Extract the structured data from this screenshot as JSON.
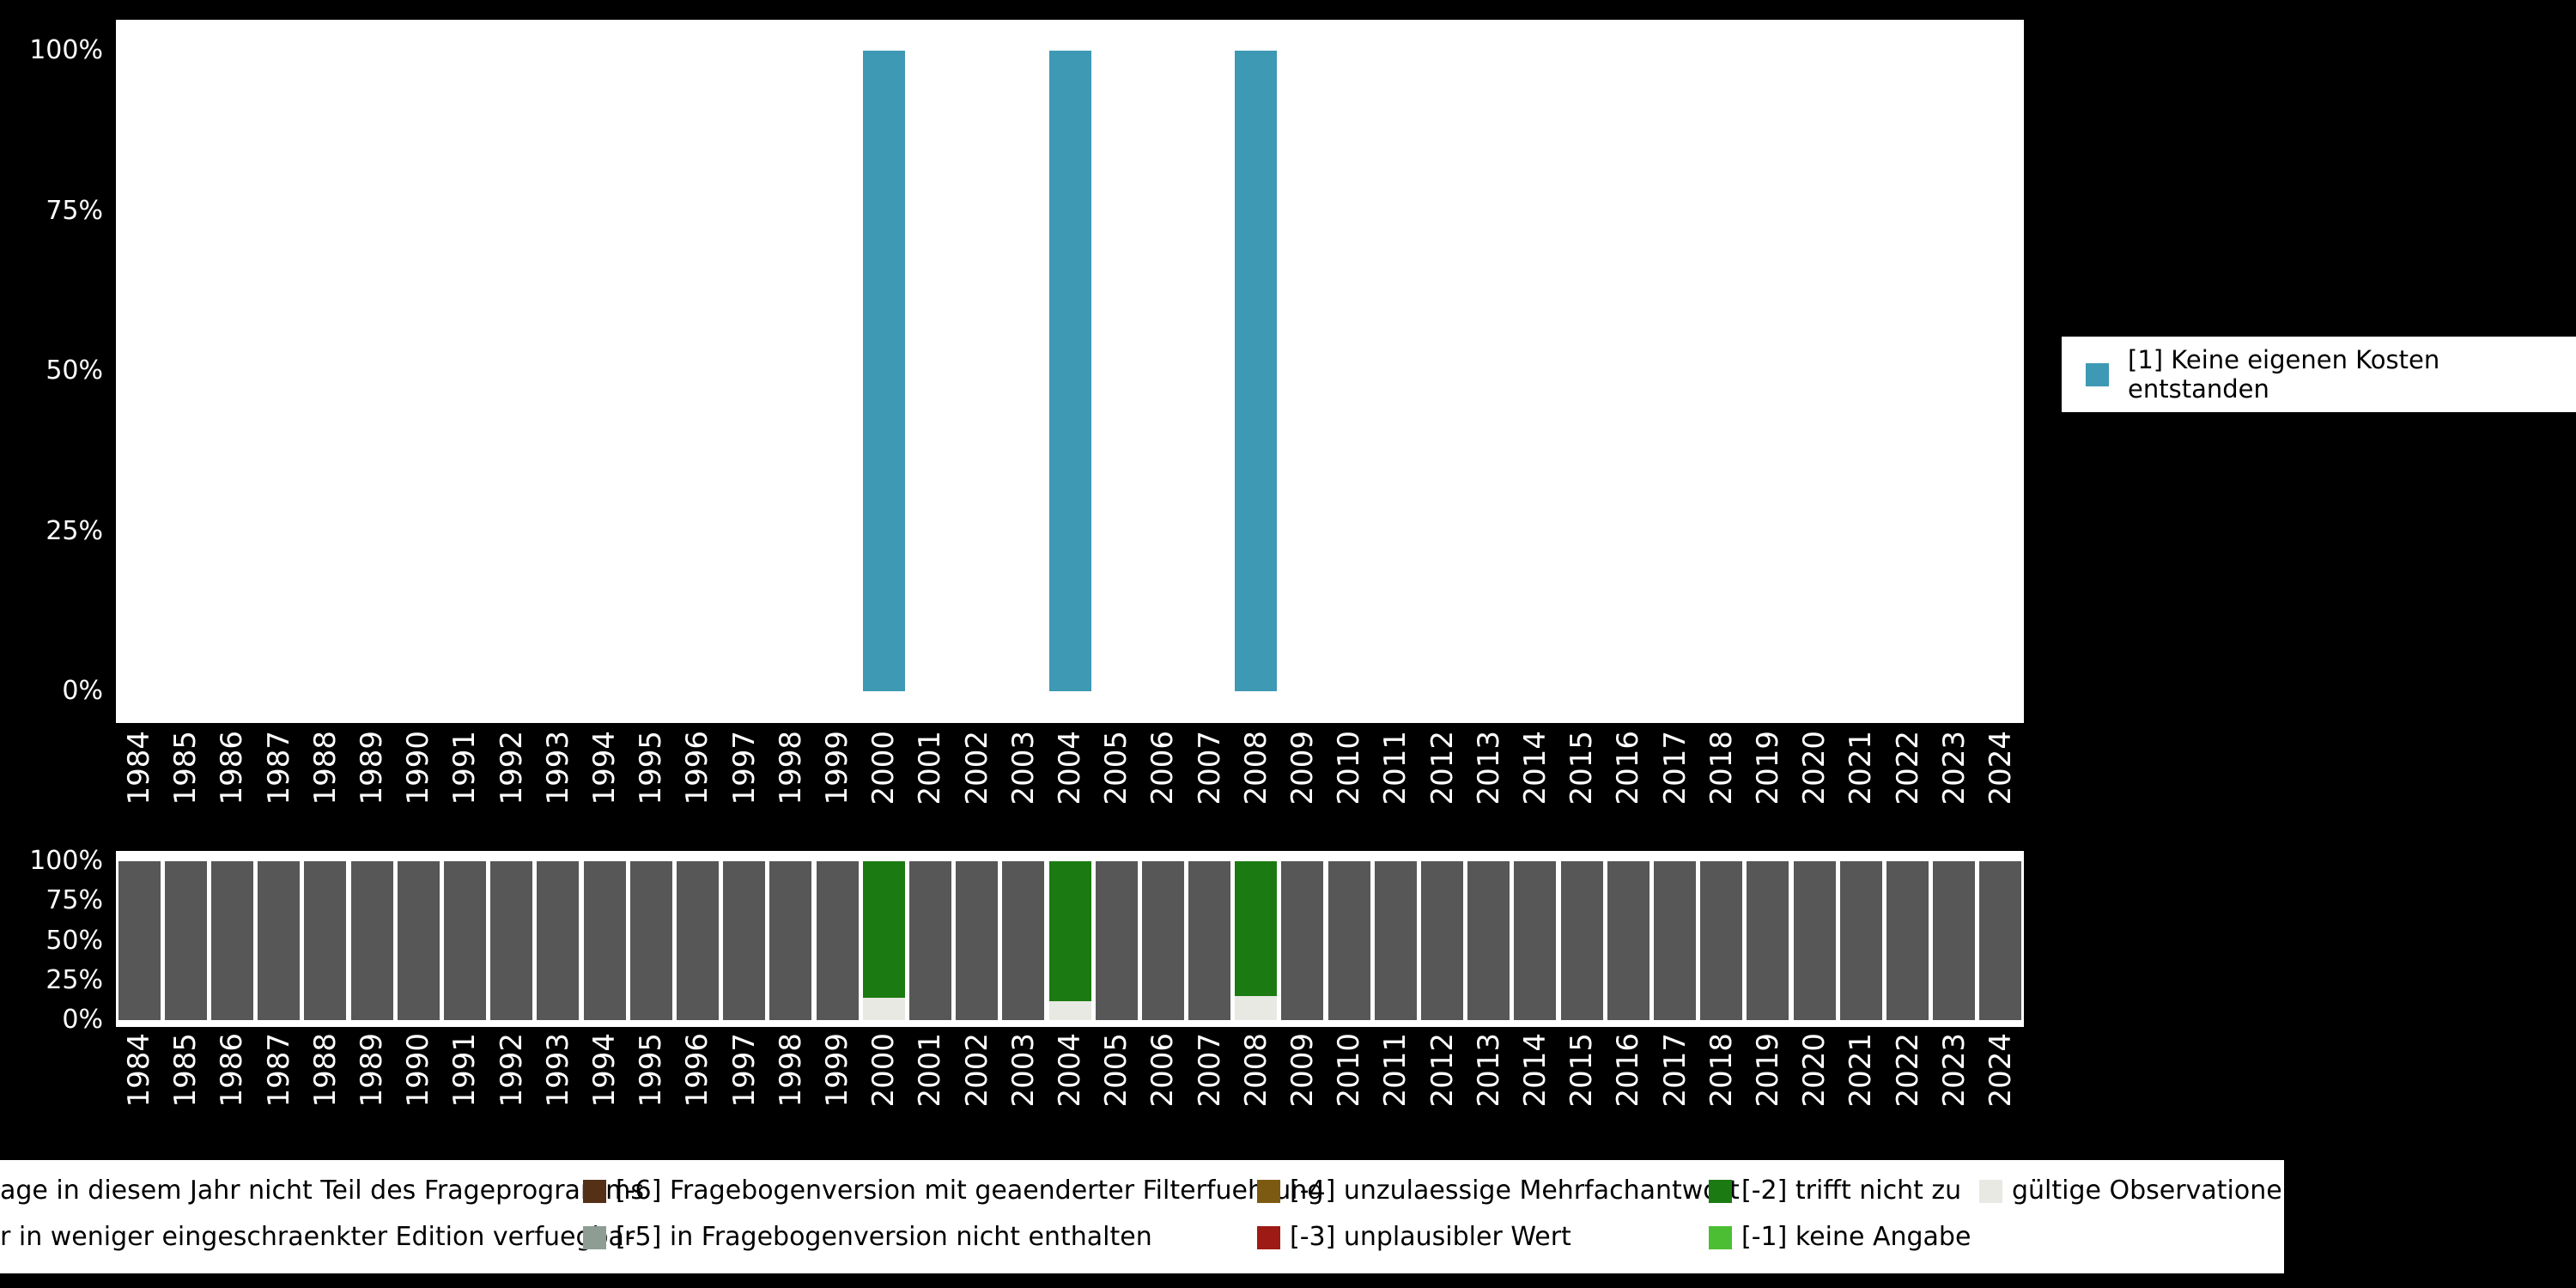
{
  "page": {
    "background": "#000000",
    "panel_background": "#ffffff",
    "axis_text_color": "#ffffff"
  },
  "category_legend": {
    "items": [
      {
        "label": "[1] Keine eigenen Kosten entstanden",
        "color": "#3d99b4"
      }
    ]
  },
  "missings_legend": {
    "rows": [
      [
        {
          "label": "age in diesem Jahr nicht Teil des Frageprogramms",
          "color": null
        },
        {
          "label": "[-6] Fragebogenversion mit geaenderter Filterfuehrung",
          "color": "#543016"
        },
        {
          "label": "[-4] unzulaessige Mehrfachantwort",
          "color": "#7d5a12"
        },
        {
          "label": "[-2] trifft nicht zu",
          "color": "#1c7a12"
        },
        {
          "label": "gültige Observationen",
          "color": "#e9e9e3"
        }
      ],
      [
        {
          "label": "r in weniger eingeschraenkter Edition verfuegbar",
          "color": null
        },
        {
          "label": "[-5] in Fragebogenversion nicht enthalten",
          "color": "#8e9d94"
        },
        {
          "label": "[-3] unplausibler Wert",
          "color": "#9e1a15"
        },
        {
          "label": "[-1] keine Angabe",
          "color": "#4cbe33"
        }
      ]
    ]
  },
  "chart_data": [
    {
      "type": "bar",
      "title": "",
      "xlabel": "",
      "ylabel": "",
      "ylim": [
        0,
        100
      ],
      "y_ticks": [
        "100%",
        "75%",
        "50%",
        "25%",
        "0%"
      ],
      "legend_position": "right",
      "legend": [
        "[1] Keine eigenen Kosten entstanden"
      ],
      "categories": [
        "1984",
        "1985",
        "1986",
        "1987",
        "1988",
        "1989",
        "1990",
        "1991",
        "1992",
        "1993",
        "1994",
        "1995",
        "1996",
        "1997",
        "1998",
        "1999",
        "2000",
        "2001",
        "2002",
        "2003",
        "2004",
        "2005",
        "2006",
        "2007",
        "2008",
        "2009",
        "2010",
        "2011",
        "2012",
        "2013",
        "2014",
        "2015",
        "2016",
        "2017",
        "2018",
        "2019",
        "2020",
        "2021",
        "2022",
        "2023",
        "2024"
      ],
      "series": [
        {
          "key": "cat1",
          "name": "[1] Keine eigenen Kosten entstanden",
          "color": "#3d99b4",
          "values": [
            0,
            0,
            0,
            0,
            0,
            0,
            0,
            0,
            0,
            0,
            0,
            0,
            0,
            0,
            0,
            0,
            100,
            0,
            0,
            0,
            100,
            0,
            0,
            0,
            100,
            0,
            0,
            0,
            0,
            0,
            0,
            0,
            0,
            0,
            0,
            0,
            0,
            0,
            0,
            0,
            0
          ]
        }
      ]
    },
    {
      "type": "stacked-bar",
      "title": "",
      "xlabel": "",
      "ylabel": "",
      "ylim": [
        0,
        100
      ],
      "y_ticks": [
        "100%",
        "75%",
        "50%",
        "25%",
        "0%"
      ],
      "legend_position": "bottom",
      "categories": [
        "1984",
        "1985",
        "1986",
        "1987",
        "1988",
        "1989",
        "1990",
        "1991",
        "1992",
        "1993",
        "1994",
        "1995",
        "1996",
        "1997",
        "1998",
        "1999",
        "2000",
        "2001",
        "2002",
        "2003",
        "2004",
        "2005",
        "2006",
        "2007",
        "2008",
        "2009",
        "2010",
        "2011",
        "2012",
        "2013",
        "2014",
        "2015",
        "2016",
        "2017",
        "2018",
        "2019",
        "2020",
        "2021",
        "2022",
        "2023",
        "2024"
      ],
      "series": [
        {
          "key": "valid",
          "name": "gültige Observationen",
          "color": "#e9e9e3",
          "values": [
            0,
            0,
            0,
            0,
            0,
            0,
            0,
            0,
            0,
            0,
            0,
            0,
            0,
            0,
            0,
            0,
            14,
            0,
            0,
            0,
            12,
            0,
            0,
            0,
            15,
            0,
            0,
            0,
            0,
            0,
            0,
            0,
            0,
            0,
            0,
            0,
            0,
            0,
            0,
            0,
            0
          ]
        },
        {
          "key": "does-not-apply",
          "name": "[-2] trifft nicht zu",
          "color": "#1c7a12",
          "values": [
            0,
            0,
            0,
            0,
            0,
            0,
            0,
            0,
            0,
            0,
            0,
            0,
            0,
            0,
            0,
            0,
            86,
            0,
            0,
            0,
            88,
            0,
            0,
            0,
            85,
            0,
            0,
            0,
            0,
            0,
            0,
            0,
            0,
            0,
            0,
            0,
            0,
            0,
            0,
            0,
            0
          ]
        },
        {
          "key": "not-in-program",
          "name": "age in diesem Jahr nicht Teil des Frageprogramms",
          "color": "#575757",
          "values": [
            100,
            100,
            100,
            100,
            100,
            100,
            100,
            100,
            100,
            100,
            100,
            100,
            100,
            100,
            100,
            100,
            0,
            100,
            100,
            100,
            0,
            100,
            100,
            100,
            0,
            100,
            100,
            100,
            100,
            100,
            100,
            100,
            100,
            100,
            100,
            100,
            100,
            100,
            100,
            100,
            100
          ]
        }
      ]
    }
  ]
}
